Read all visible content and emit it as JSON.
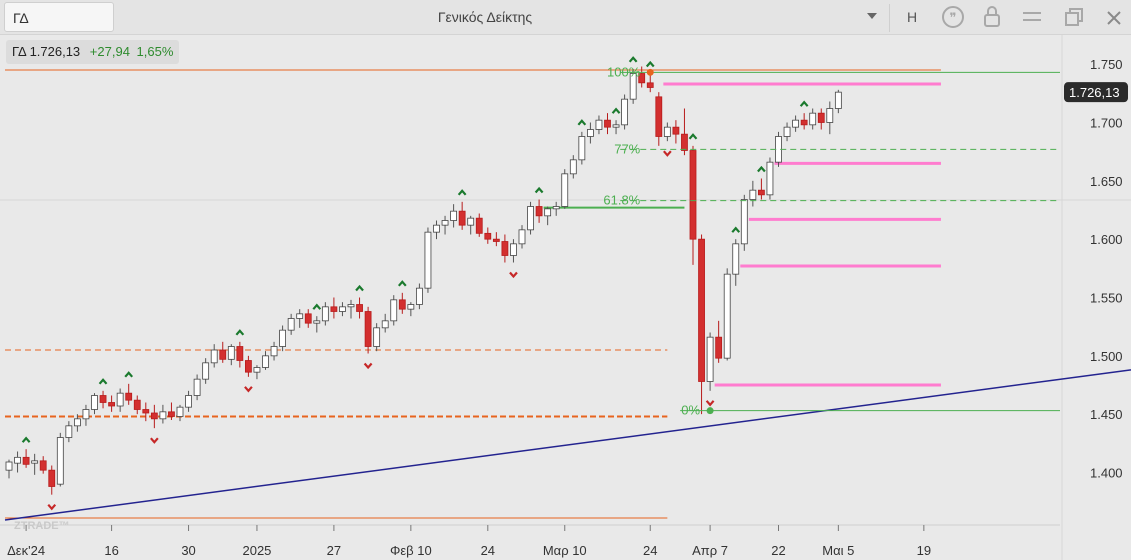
{
  "header": {
    "symbol": "ΓΔ",
    "title": "Γενικός Δείκτης",
    "dropdown_icon": "caret-down-icon",
    "interval": "H",
    "icons": [
      "quote-icon",
      "lock-icon",
      "menu-icon",
      "restore-window-icon",
      "close-icon"
    ]
  },
  "info": {
    "name": "ΓΔ",
    "last": "1.726,13",
    "change": "+27,94",
    "change_pct": "1,65%"
  },
  "price_tag": "1.726,13",
  "watermark": "ZTRADE™",
  "colors": {
    "up": "#ffffff",
    "down": "#d32f2f",
    "wick": "#555555",
    "fib": "#4caf50",
    "pink": "#ff7ccf",
    "orange": "#e8641e",
    "trend": "#23238f"
  },
  "chart_data": {
    "type": "candlestick",
    "y_ticks": [
      "1.750",
      "1.700",
      "1.650",
      "1.600",
      "1.550",
      "1.500",
      "1.450",
      "1.400"
    ],
    "ylim": [
      1355,
      1775
    ],
    "x_ticks": [
      {
        "label": "Δεκ'24",
        "i": 2
      },
      {
        "label": "16",
        "i": 12
      },
      {
        "label": "30",
        "i": 21
      },
      {
        "label": "2025",
        "i": 29
      },
      {
        "label": "27",
        "i": 38
      },
      {
        "label": "Φεβ 10",
        "i": 47
      },
      {
        "label": "24",
        "i": 56
      },
      {
        "label": "Μαρ 10",
        "i": 65
      },
      {
        "label": "24",
        "i": 75
      },
      {
        "label": "Απρ 7",
        "i": 82
      },
      {
        "label": "22",
        "i": 90
      },
      {
        "label": "Μαι 5",
        "i": 97
      },
      {
        "label": "19",
        "i": 107
      }
    ],
    "candles": [
      [
        1402,
        1411,
        1395,
        1409
      ],
      [
        1408,
        1418,
        1400,
        1413
      ],
      [
        1413,
        1420,
        1404,
        1407
      ],
      [
        1408,
        1416,
        1398,
        1410
      ],
      [
        1410,
        1414,
        1399,
        1402
      ],
      [
        1402,
        1406,
        1381,
        1388
      ],
      [
        1390,
        1434,
        1388,
        1430
      ],
      [
        1430,
        1444,
        1426,
        1440
      ],
      [
        1440,
        1450,
        1435,
        1446
      ],
      [
        1446,
        1458,
        1440,
        1454
      ],
      [
        1454,
        1468,
        1450,
        1466
      ],
      [
        1466,
        1470,
        1455,
        1460
      ],
      [
        1460,
        1466,
        1452,
        1457
      ],
      [
        1457,
        1472,
        1452,
        1468
      ],
      [
        1468,
        1476,
        1458,
        1462
      ],
      [
        1462,
        1466,
        1450,
        1454
      ],
      [
        1454,
        1460,
        1444,
        1451
      ],
      [
        1451,
        1458,
        1438,
        1446
      ],
      [
        1446,
        1458,
        1442,
        1452
      ],
      [
        1452,
        1460,
        1445,
        1448
      ],
      [
        1448,
        1458,
        1444,
        1456
      ],
      [
        1456,
        1470,
        1452,
        1466
      ],
      [
        1466,
        1484,
        1462,
        1480
      ],
      [
        1480,
        1498,
        1476,
        1494
      ],
      [
        1494,
        1510,
        1490,
        1505
      ],
      [
        1505,
        1512,
        1494,
        1497
      ],
      [
        1497,
        1510,
        1492,
        1508
      ],
      [
        1508,
        1512,
        1490,
        1496
      ],
      [
        1496,
        1500,
        1482,
        1486
      ],
      [
        1486,
        1492,
        1480,
        1490
      ],
      [
        1490,
        1504,
        1488,
        1500
      ],
      [
        1500,
        1512,
        1496,
        1508
      ],
      [
        1508,
        1526,
        1504,
        1522
      ],
      [
        1522,
        1536,
        1518,
        1532
      ],
      [
        1532,
        1540,
        1524,
        1536
      ],
      [
        1536,
        1540,
        1524,
        1528
      ],
      [
        1528,
        1534,
        1520,
        1530
      ],
      [
        1530,
        1546,
        1526,
        1542
      ],
      [
        1542,
        1550,
        1532,
        1538
      ],
      [
        1538,
        1546,
        1534,
        1542
      ],
      [
        1542,
        1548,
        1532,
        1544
      ],
      [
        1544,
        1550,
        1532,
        1538
      ],
      [
        1538,
        1542,
        1502,
        1508
      ],
      [
        1508,
        1528,
        1504,
        1524
      ],
      [
        1524,
        1536,
        1520,
        1530
      ],
      [
        1530,
        1552,
        1526,
        1548
      ],
      [
        1548,
        1554,
        1536,
        1540
      ],
      [
        1540,
        1546,
        1534,
        1544
      ],
      [
        1544,
        1562,
        1540,
        1558
      ],
      [
        1558,
        1610,
        1554,
        1606
      ],
      [
        1606,
        1616,
        1600,
        1612
      ],
      [
        1612,
        1620,
        1604,
        1616
      ],
      [
        1616,
        1630,
        1610,
        1624
      ],
      [
        1624,
        1632,
        1608,
        1612
      ],
      [
        1612,
        1620,
        1604,
        1618
      ],
      [
        1618,
        1622,
        1602,
        1605
      ],
      [
        1605,
        1610,
        1596,
        1600
      ],
      [
        1600,
        1606,
        1594,
        1598
      ],
      [
        1598,
        1604,
        1580,
        1586
      ],
      [
        1586,
        1600,
        1580,
        1596
      ],
      [
        1596,
        1612,
        1592,
        1608
      ],
      [
        1608,
        1632,
        1604,
        1628
      ],
      [
        1628,
        1634,
        1614,
        1620
      ],
      [
        1620,
        1628,
        1612,
        1626
      ],
      [
        1626,
        1632,
        1620,
        1628
      ],
      [
        1628,
        1660,
        1626,
        1656
      ],
      [
        1656,
        1672,
        1652,
        1668
      ],
      [
        1668,
        1692,
        1664,
        1688
      ],
      [
        1688,
        1700,
        1682,
        1694
      ],
      [
        1694,
        1706,
        1690,
        1702
      ],
      [
        1702,
        1708,
        1690,
        1696
      ],
      [
        1696,
        1702,
        1690,
        1698
      ],
      [
        1698,
        1724,
        1694,
        1720
      ],
      [
        1720,
        1746,
        1716,
        1742
      ],
      [
        1742,
        1748,
        1730,
        1734
      ],
      [
        1734,
        1742,
        1726,
        1730
      ],
      [
        1722,
        1726,
        1680,
        1688
      ],
      [
        1688,
        1700,
        1684,
        1696
      ],
      [
        1696,
        1702,
        1682,
        1690
      ],
      [
        1690,
        1712,
        1672,
        1676
      ],
      [
        1676,
        1680,
        1578,
        1600
      ],
      [
        1600,
        1604,
        1450,
        1478
      ],
      [
        1478,
        1520,
        1470,
        1516
      ],
      [
        1516,
        1530,
        1494,
        1498
      ],
      [
        1498,
        1575,
        1496,
        1570
      ],
      [
        1570,
        1600,
        1560,
        1596
      ],
      [
        1596,
        1638,
        1590,
        1634
      ],
      [
        1634,
        1650,
        1628,
        1642
      ],
      [
        1642,
        1652,
        1634,
        1638
      ],
      [
        1638,
        1670,
        1634,
        1666
      ],
      [
        1666,
        1692,
        1662,
        1688
      ],
      [
        1688,
        1700,
        1684,
        1696
      ],
      [
        1696,
        1706,
        1692,
        1702
      ],
      [
        1702,
        1708,
        1694,
        1698
      ],
      [
        1698,
        1712,
        1694,
        1708
      ],
      [
        1708,
        1712,
        1694,
        1700
      ],
      [
        1700,
        1718,
        1690,
        1712
      ],
      [
        1712,
        1728,
        1708,
        1726
      ]
    ],
    "fib_levels": [
      {
        "label": "100%",
        "value": 1743,
        "i_start": 75
      },
      {
        "label": "77%",
        "value": 1677,
        "i_start": 75
      },
      {
        "label": "61.8%",
        "value": 1633,
        "i_start": 75
      },
      {
        "label": "0%",
        "value": 1453,
        "i_start": 82
      }
    ],
    "horizontal_lines": [
      {
        "type": "solid-orange",
        "value": 1745,
        "i_start": 0,
        "i_end": 109
      },
      {
        "type": "solid-orange",
        "value": 1361,
        "i_start": 0,
        "i_end": 77
      },
      {
        "type": "dashed-orange",
        "value": 1505,
        "i_start": 0,
        "i_end": 77
      },
      {
        "type": "dashed-orange-bold",
        "value": 1448,
        "i_start": 0,
        "i_end": 77
      },
      {
        "type": "solid-green",
        "value": 1627,
        "i_start": 63,
        "i_end": 79
      },
      {
        "type": "pink",
        "value": 1733,
        "i_start": 77,
        "i_end": 109
      },
      {
        "type": "pink",
        "value": 1665,
        "i_start": 90,
        "i_end": 109
      },
      {
        "type": "pink",
        "value": 1617,
        "i_start": 87,
        "i_end": 109
      },
      {
        "type": "pink",
        "value": 1577,
        "i_start": 86,
        "i_end": 109
      },
      {
        "type": "pink",
        "value": 1475,
        "i_start": 83,
        "i_end": 109
      }
    ],
    "trendline": {
      "i_start": 0,
      "value_start": 1361,
      "i_end": 115,
      "value_end": 1488
    },
    "up_markers": [
      2,
      11,
      14,
      27,
      36,
      41,
      46,
      53,
      62,
      67,
      71,
      73,
      75,
      80,
      85,
      88,
      93
    ],
    "down_markers": [
      5,
      17,
      28,
      42,
      59,
      77,
      82
    ]
  }
}
